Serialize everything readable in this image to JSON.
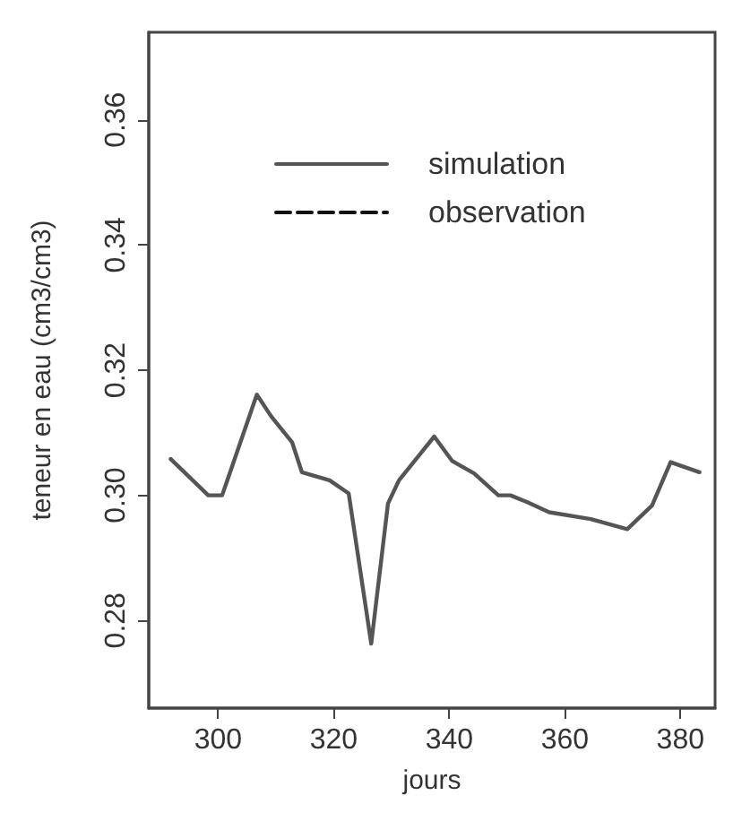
{
  "chart_data": {
    "type": "line",
    "xlabel": "jours",
    "ylabel": "teneur en eau (cm3/cm3)",
    "xlim": [
      288,
      386
    ],
    "xticks": [
      300,
      320,
      340,
      360,
      380
    ],
    "ylim": [
      0.266,
      0.374
    ],
    "yticks": [
      0.28,
      {
        "value": 0.3,
        "label": "0.30"
      },
      0.32,
      0.34,
      0.36
    ],
    "grid": false,
    "legend": "top",
    "marker": "none",
    "series": [
      {
        "name": "simulation",
        "color": "#555555",
        "line_style": "solid",
        "x": [
          291.8,
          298.3,
          300.7,
          306.7,
          309.2,
          312.8,
          314.5,
          319.3,
          322.6,
          326.5,
          329.4,
          331.3,
          337.4,
          340.5,
          344.3,
          348.5,
          350.6,
          353.5,
          357.3,
          364.5,
          370.8,
          375.1,
          378.3,
          383.3
        ],
        "values": [
          0.3058,
          0.3,
          0.3,
          0.3161,
          0.3126,
          0.3085,
          0.3037,
          0.3024,
          0.3003,
          0.2763,
          0.2987,
          0.3024,
          0.3094,
          0.3055,
          0.3035,
          0.3,
          0.3,
          0.2989,
          0.2973,
          0.2962,
          0.2946,
          0.2984,
          0.3053,
          0.3037
        ]
      },
      {
        "name": "observation",
        "color": "#111111",
        "line_style": "dashed"
      }
    ]
  }
}
